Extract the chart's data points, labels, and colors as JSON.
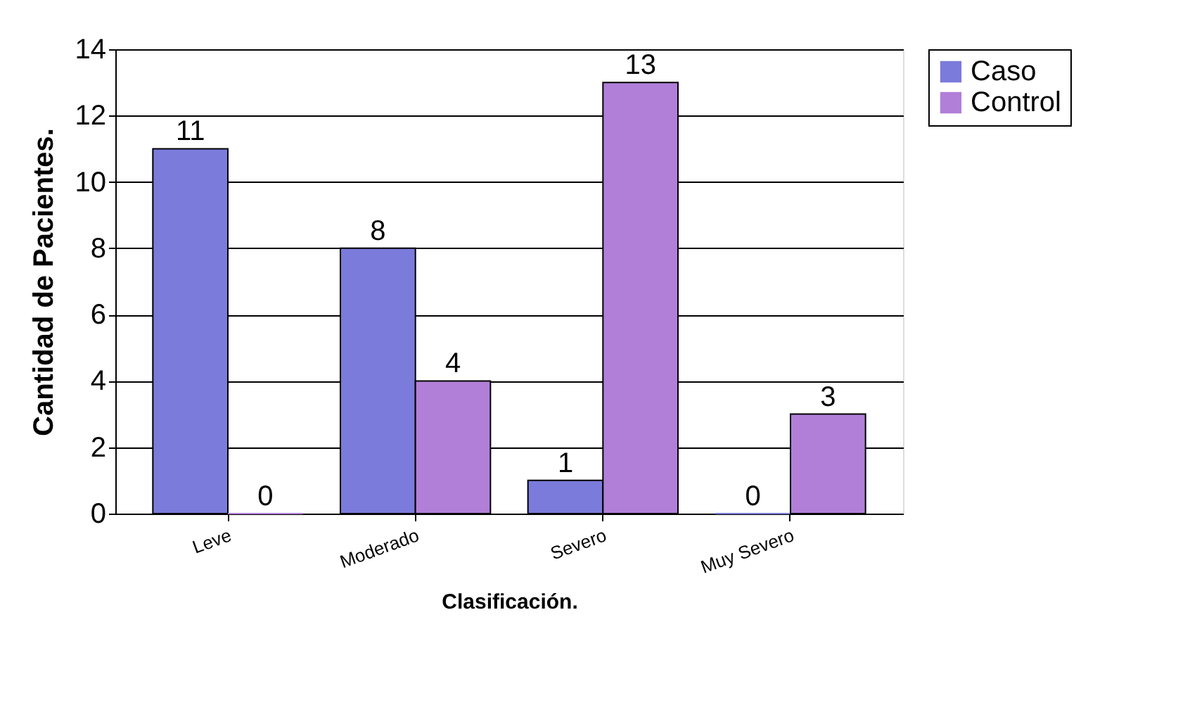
{
  "chart_data": {
    "type": "bar",
    "xlabel": "Clasificación.",
    "ylabel": "Cantidad de Pacientes.",
    "categories": [
      "Leve",
      "Moderado",
      "Severo",
      "Muy Severo"
    ],
    "series": [
      {
        "name": "Caso",
        "color": "#7b7bdb",
        "values": [
          11,
          8,
          1,
          0
        ]
      },
      {
        "name": "Control",
        "color": "#b27fd8",
        "values": [
          0,
          4,
          13,
          3
        ]
      }
    ],
    "ylim": [
      0,
      14
    ],
    "yticks": [
      0,
      2,
      4,
      6,
      8,
      10,
      12,
      14
    ],
    "grid": "y",
    "legend": "right",
    "data_labels": true
  }
}
